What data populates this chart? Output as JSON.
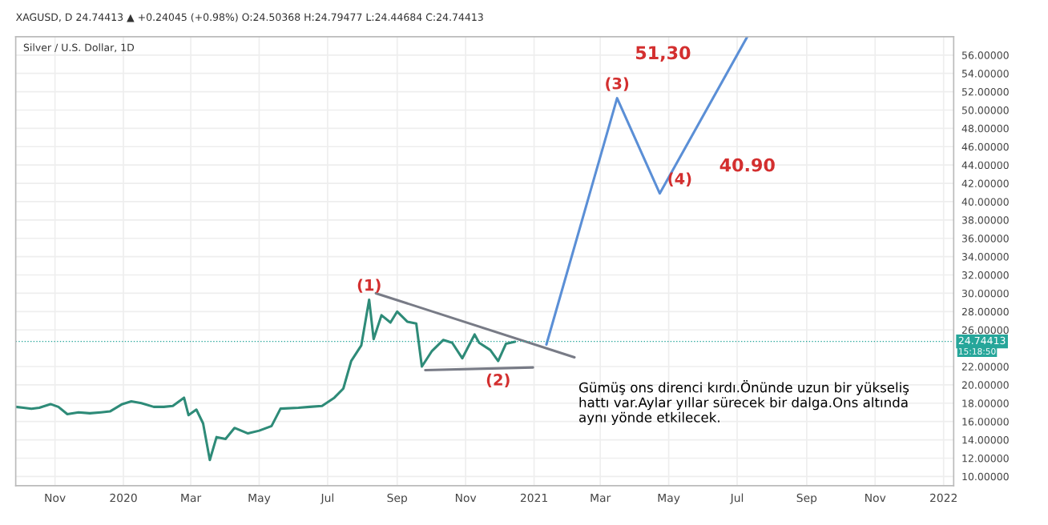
{
  "chart_data": {
    "type": "line",
    "title": "Silver / U.S. Dollar, 1D",
    "subtitle": "XAGUSD, D 24.74413 ▲ +0.24045 (+0.98%) O:24.50368 H:24.79477 L:24.44684 C:24.74413",
    "x": [
      "2019-09-27",
      "2019-10-04",
      "2019-10-11",
      "2019-10-18",
      "2019-10-28",
      "2019-11-04",
      "2019-11-12",
      "2019-11-22",
      "2019-12-02",
      "2019-12-12",
      "2019-12-20",
      "2019-12-31",
      "2020-01-08",
      "2020-01-17",
      "2020-01-28",
      "2020-02-06",
      "2020-02-14",
      "2020-02-24",
      "2020-02-28",
      "2020-03-06",
      "2020-03-12",
      "2020-03-18",
      "2020-03-24",
      "2020-04-01",
      "2020-04-09",
      "2020-04-21",
      "2020-05-01",
      "2020-05-12",
      "2020-05-20",
      "2020-06-05",
      "2020-06-15",
      "2020-06-26",
      "2020-07-07",
      "2020-07-15",
      "2020-07-22",
      "2020-07-31",
      "2020-08-07",
      "2020-08-11",
      "2020-08-18",
      "2020-08-26",
      "2020-09-01",
      "2020-09-10",
      "2020-09-18",
      "2020-09-23",
      "2020-10-02",
      "2020-10-12",
      "2020-10-20",
      "2020-10-29",
      "2020-11-09",
      "2020-11-13",
      "2020-11-23",
      "2020-11-30",
      "2020-12-07",
      "2020-12-15"
    ],
    "series": [
      {
        "color": "#2e8b78",
        "values": [
          17.6,
          17.5,
          17.4,
          17.5,
          17.9,
          17.6,
          16.8,
          17.0,
          16.9,
          17.0,
          17.1,
          17.9,
          18.2,
          18.0,
          17.6,
          17.6,
          17.7,
          18.6,
          16.7,
          17.3,
          15.8,
          11.8,
          14.3,
          14.1,
          15.3,
          14.7,
          15.0,
          15.5,
          17.4,
          17.5,
          17.6,
          17.7,
          18.6,
          19.6,
          22.6,
          24.3,
          29.3,
          25.0,
          27.6,
          26.8,
          28.0,
          26.9,
          26.7,
          22.0,
          23.7,
          24.9,
          24.6,
          22.9,
          25.5,
          24.6,
          23.8,
          22.6,
          24.5,
          24.7
        ]
      },
      {
        "type": "line",
        "color": "#5b8fd6",
        "x": [
          "2021-01-12",
          "2021-03-16",
          "2021-04-23",
          "2021-07-10"
        ],
        "values": [
          24.4,
          51.3,
          40.9,
          58
        ]
      },
      {
        "type": "line",
        "color": "#787b86",
        "x": [
          "2020-08-13",
          "2021-02-06"
        ],
        "values": [
          30,
          23
        ]
      },
      {
        "type": "line",
        "color": "#787b86",
        "x": [
          "2020-09-26",
          "2020-12-31"
        ],
        "values": [
          21.6,
          21.9
        ]
      }
    ],
    "annotations": [
      {
        "text": "(1)",
        "x": "2020-08-07",
        "y": 29.3
      },
      {
        "text": "(2)",
        "x": "2020-11-30",
        "y": 22.6
      },
      {
        "text": "(3)",
        "x": "2021-03-16",
        "y": 51.3
      },
      {
        "text": "(4)",
        "x": "2021-04-23",
        "y": 40.9
      },
      "51,30",
      "40.90",
      "Gümüş ons direnci kırdı.Önünde uzun bir yükseliş hattı var.Aylar yıllar sürecek bir dalga.Ons altında aynı yönde etkilecek.",
      "15:18:50"
    ],
    "ref_lines": [
      {
        "axis": "y",
        "value": 24.74413,
        "label": "24.74413",
        "color": "#26a69a"
      }
    ],
    "xlim": [
      "2019-09-27",
      "2022-01-10"
    ],
    "xticks": [
      {
        "value": "2019-11-01",
        "label": "Nov"
      },
      {
        "value": "2020-01-01",
        "label": "2020"
      },
      {
        "value": "2020-03-01",
        "label": "Mar"
      },
      {
        "value": "2020-05-01",
        "label": "May"
      },
      {
        "value": "2020-07-01",
        "label": "Jul"
      },
      {
        "value": "2020-09-01",
        "label": "Sep"
      },
      {
        "value": "2020-11-01",
        "label": "Nov"
      },
      {
        "value": "2021-01-01",
        "label": "2021"
      },
      {
        "value": "2021-03-01",
        "label": "Mar"
      },
      {
        "value": "2021-05-01",
        "label": "May"
      },
      {
        "value": "2021-07-01",
        "label": "Jul"
      },
      {
        "value": "2021-09-01",
        "label": "Sep"
      },
      {
        "value": "2021-11-01",
        "label": "Nov"
      },
      {
        "value": "2022-01-01",
        "label": "2022"
      }
    ],
    "ylim": [
      9,
      58
    ],
    "yticks": [
      {
        "value": 10,
        "label": "10.00000"
      },
      {
        "value": 12,
        "label": "12.00000"
      },
      {
        "value": 14,
        "label": "14.00000"
      },
      {
        "value": 16,
        "label": "16.00000"
      },
      {
        "value": 18,
        "label": "18.00000"
      },
      {
        "value": 20,
        "label": "20.00000"
      },
      {
        "value": 22,
        "label": "22.00000"
      },
      {
        "value": 26,
        "label": "26.00000"
      },
      {
        "value": 28,
        "label": "28.00000"
      },
      {
        "value": 30,
        "label": "30.00000"
      },
      {
        "value": 32,
        "label": "32.00000"
      },
      {
        "value": 34,
        "label": "34.00000"
      },
      {
        "value": 36,
        "label": "36.00000"
      },
      {
        "value": 38,
        "label": "38.00000"
      },
      {
        "value": 40,
        "label": "40.00000"
      },
      {
        "value": 42,
        "label": "42.00000"
      },
      {
        "value": 44,
        "label": "44.00000"
      },
      {
        "value": 46,
        "label": "46.00000"
      },
      {
        "value": 48,
        "label": "48.00000"
      },
      {
        "value": 50,
        "label": "50.00000"
      },
      {
        "value": 52,
        "label": "52.00000"
      },
      {
        "value": 54,
        "label": "54.00000"
      },
      {
        "value": 56,
        "label": "56.00000"
      }
    ],
    "grid": true
  }
}
